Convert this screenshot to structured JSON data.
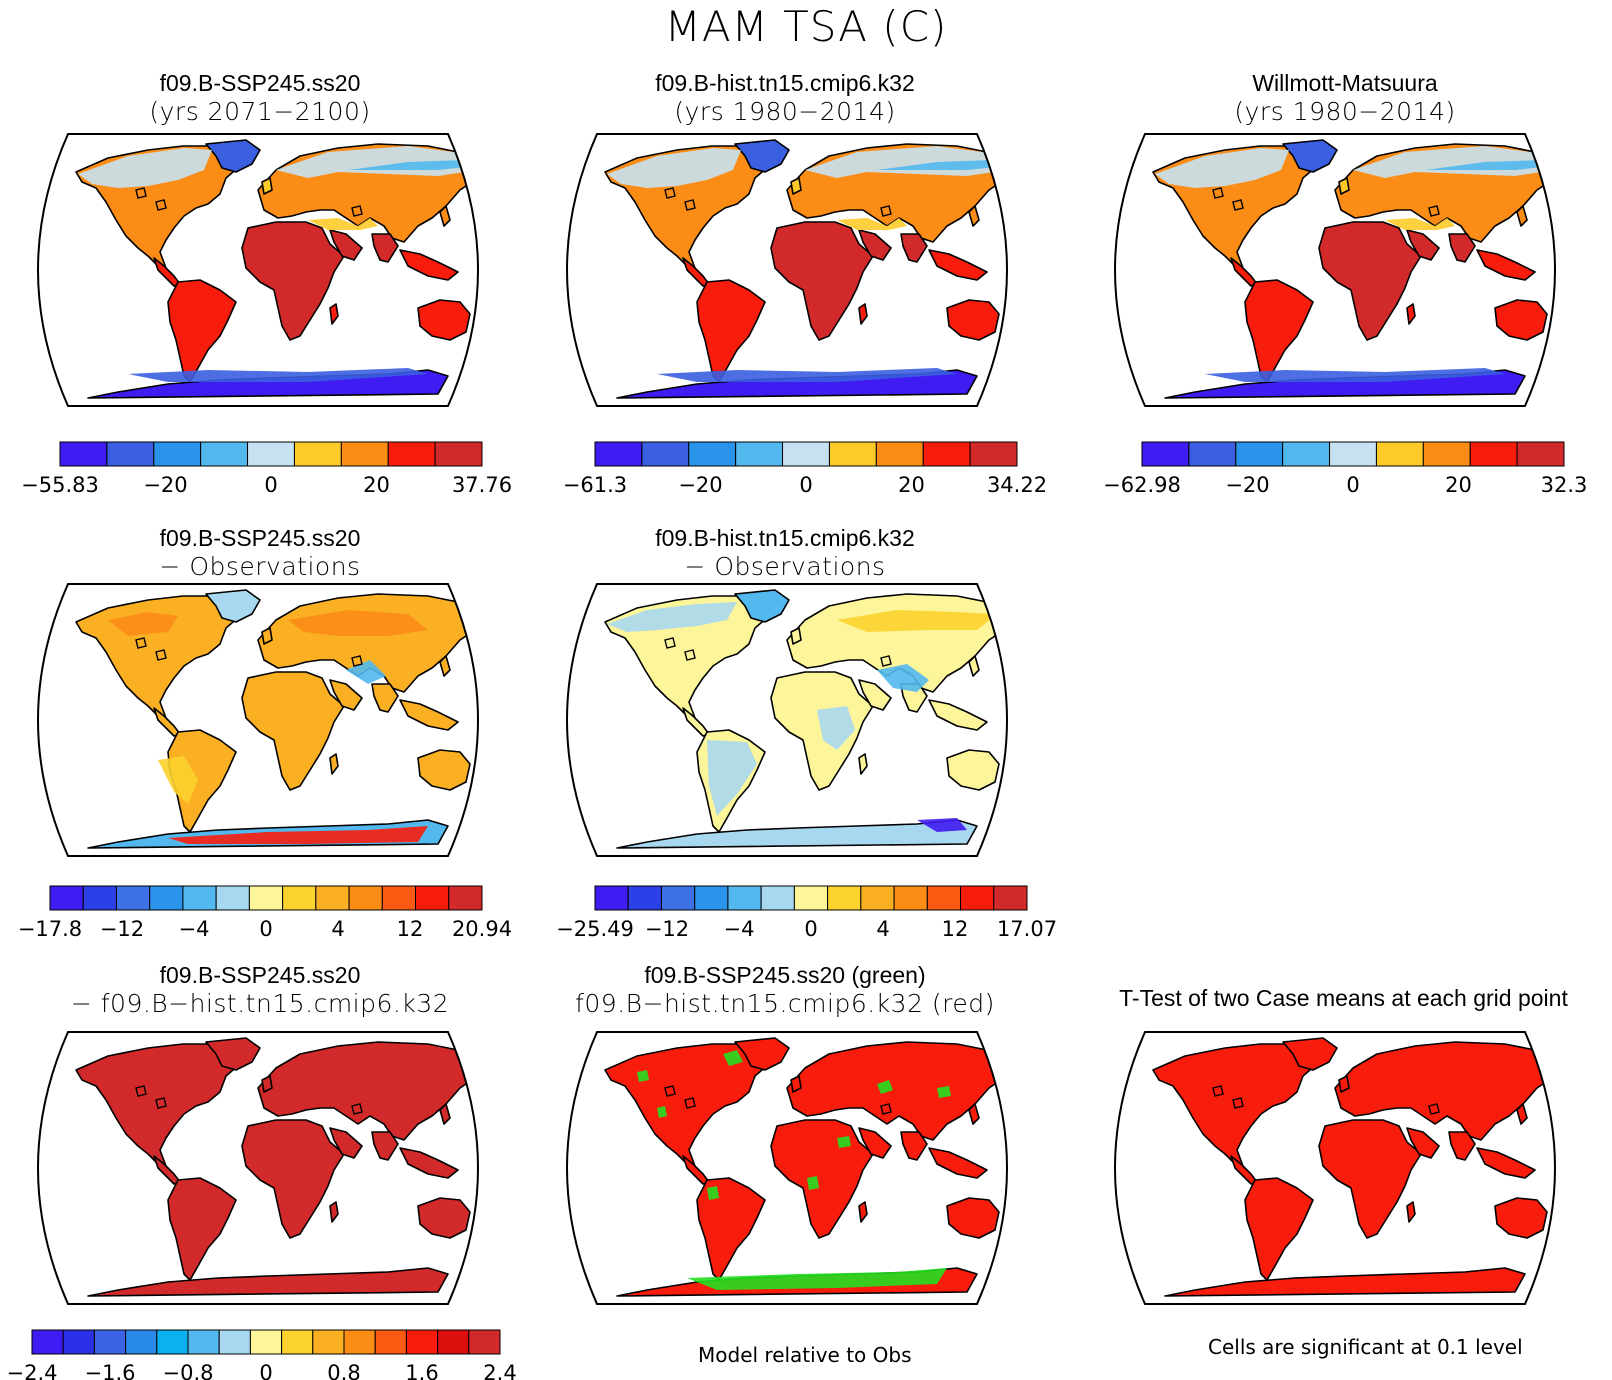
{
  "figure": {
    "title": "MAM TSA (C)",
    "footer_left": "Model relative to Obs",
    "footer_right": "Cells are significant at 0.1 level"
  },
  "panels": [
    {
      "id": "p1",
      "line1": "f09.B-SSP245.ss20",
      "line2": "(yrs 2071−2100)",
      "style": "abs"
    },
    {
      "id": "p2",
      "line1": "f09.B-hist.tn15.cmip6.k32",
      "line2": "(yrs 1980−2014)",
      "style": "abs"
    },
    {
      "id": "p3",
      "line1": "Willmott-Matsuura",
      "line2": "(yrs 1980−2014)",
      "style": "abs"
    },
    {
      "id": "p4",
      "line1": "f09.B-SSP245.ss20",
      "line2": "− Observations",
      "style": "diffwarm"
    },
    {
      "id": "p5",
      "line1": "f09.B-hist.tn15.cmip6.k32",
      "line2": "− Observations",
      "style": "diffmixed"
    },
    {
      "id": "p6",
      "line1": "f09.B-SSP245.ss20",
      "line2": "− f09.B−hist.tn15.cmip6.k32",
      "style": "darkred"
    },
    {
      "id": "p7",
      "line1": "f09.B-SSP245.ss20 (green)",
      "line2": "f09.B−hist.tn15.cmip6.k32 (red)",
      "style": "redgreen"
    },
    {
      "id": "p8",
      "line1": "T-Test of two Case means at each grid point",
      "line2": "",
      "style": "red"
    }
  ],
  "colorbars": {
    "abs_colors": [
      "#3f1cf2",
      "#3a5fe0",
      "#2a93ea",
      "#52b8ee",
      "#c6e2f2",
      "#fccb2a",
      "#fb8c16",
      "#f81c0c",
      "#d22a2a"
    ],
    "cb1": {
      "labels": [
        "−55.83",
        "−20",
        "0",
        "20",
        "37.76"
      ]
    },
    "cb2": {
      "labels": [
        "−61.3",
        "−20",
        "0",
        "20",
        "34.22"
      ]
    },
    "cb3": {
      "labels": [
        "−62.98",
        "−20",
        "0",
        "20",
        "32.3"
      ]
    },
    "diff_colors": [
      "#3f1cf2",
      "#2b40e6",
      "#3c72e6",
      "#2a93ea",
      "#52b8ee",
      "#a8d8f0",
      "#fcf59a",
      "#fcd22e",
      "#fbb024",
      "#fb8c16",
      "#fa5a12",
      "#f81c0c",
      "#d22a2a"
    ],
    "cb4": {
      "labels": [
        "−17.8",
        "−12",
        "−4",
        "0",
        "4",
        "12",
        "20.94"
      ]
    },
    "cb5": {
      "labels": [
        "−25.49",
        "−12",
        "−4",
        "0",
        "4",
        "12",
        "17.07"
      ]
    },
    "cb6_colors": [
      "#3f1cf2",
      "#2b30e6",
      "#3c62e6",
      "#2a8aea",
      "#0ab0f0",
      "#52b8ee",
      "#a8d8f0",
      "#fcf59a",
      "#fcd22e",
      "#fbb024",
      "#fb8c16",
      "#fa5a12",
      "#f81c0c",
      "#dd0e0e",
      "#d22a2a"
    ],
    "cb6": {
      "labels": [
        "−2.4",
        "−1.6",
        "−0.8",
        "0",
        "0.8",
        "1.6",
        "2.4"
      ]
    }
  }
}
